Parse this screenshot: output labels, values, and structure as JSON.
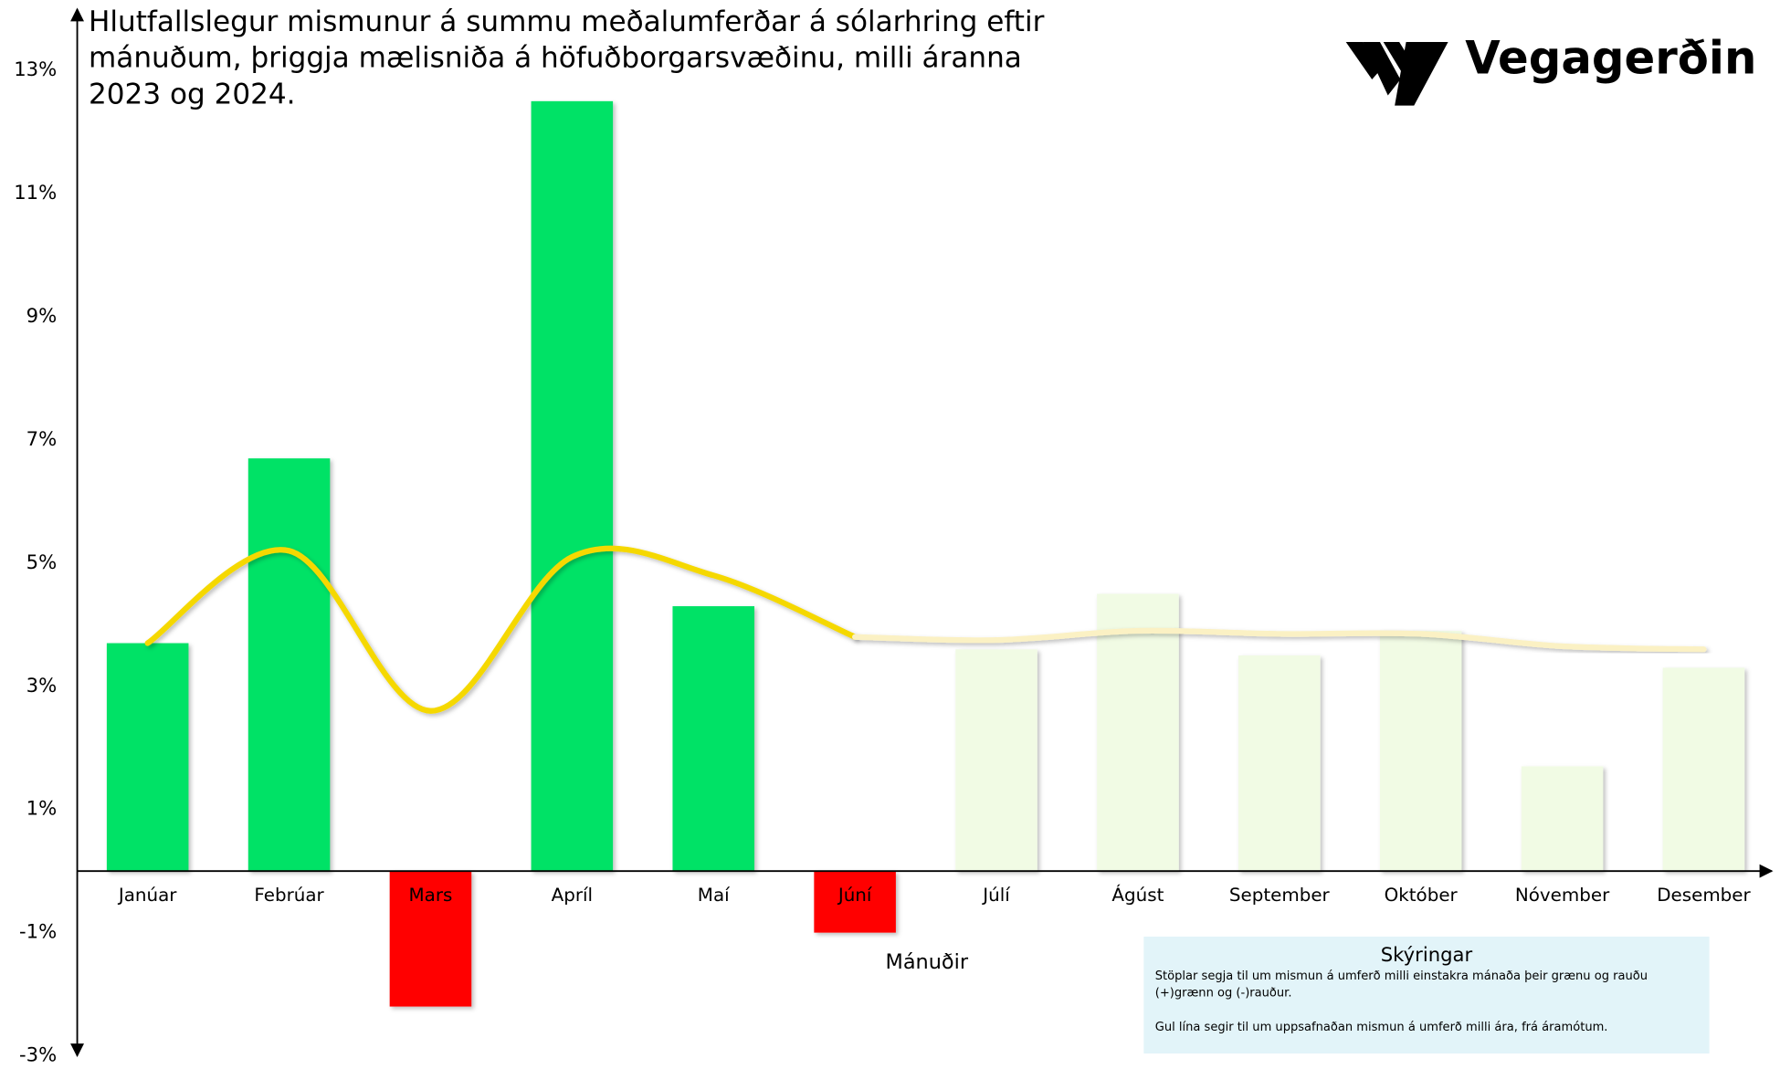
{
  "chart_data": {
    "type": "bar",
    "title": [
      "Hlutfallslegur mismunur á summu meðalumferðar á sólarhring eftir",
      "mánuðum, þriggja mælisniða á höfuðborgarsvæðinu, milli áranna",
      "2023 og 2024."
    ],
    "logo": "Vegagerðin",
    "x_label": "Mánuðir",
    "categories": [
      "Janúar",
      "Febrúar",
      "Mars",
      "Apríl",
      "Maí",
      "Júní",
      "Júlí",
      "Ágúst",
      "September",
      "Október",
      "Nóvember",
      "Desember"
    ],
    "values": [
      3.7,
      6.7,
      -2.2,
      12.5,
      4.3,
      -1.0,
      3.6,
      4.5,
      3.5,
      3.9,
      1.7,
      3.3
    ],
    "colors": [
      "#00e266",
      "#00e266",
      "#ff0000",
      "#00e266",
      "#00e266",
      "#ff0000",
      "#f1fbe4",
      "#f1fbe4",
      "#f1fbe4",
      "#f1fbe4",
      "#f1fbe4",
      "#f1fbe4"
    ],
    "lines": [
      {
        "color": "#f5d800",
        "values": [
          3.7,
          5.2,
          2.6,
          5.1,
          4.8,
          3.8,
          null,
          null,
          null,
          null,
          null,
          null
        ]
      },
      {
        "color": "#fbf1c4",
        "values": [
          null,
          null,
          null,
          null,
          null,
          3.8,
          3.75,
          3.9,
          3.85,
          3.85,
          3.65,
          3.6
        ]
      }
    ],
    "ylim": [
      -3,
      13
    ],
    "yticks": [
      {
        "value": -3,
        "label": "-3%"
      },
      {
        "value": -1,
        "label": "-1%"
      },
      {
        "value": 1,
        "label": "1%"
      },
      {
        "value": 3,
        "label": "3%"
      },
      {
        "value": 5,
        "label": "5%"
      },
      {
        "value": 7,
        "label": "7%"
      },
      {
        "value": 9,
        "label": "9%"
      },
      {
        "value": 11,
        "label": "11%"
      },
      {
        "value": 13,
        "label": "13%"
      }
    ],
    "notes": {
      "title": "Skýringar",
      "lines": [
        "Stöplar segja til um mismun á umferð milli einstakra mánaða  þeir grænu og rauðu",
        "(+)grænn og (-)rauður.",
        "",
        "Gul lína segir til um uppsafnaðan mismun á umferð milli ára, frá áramótum."
      ]
    }
  }
}
